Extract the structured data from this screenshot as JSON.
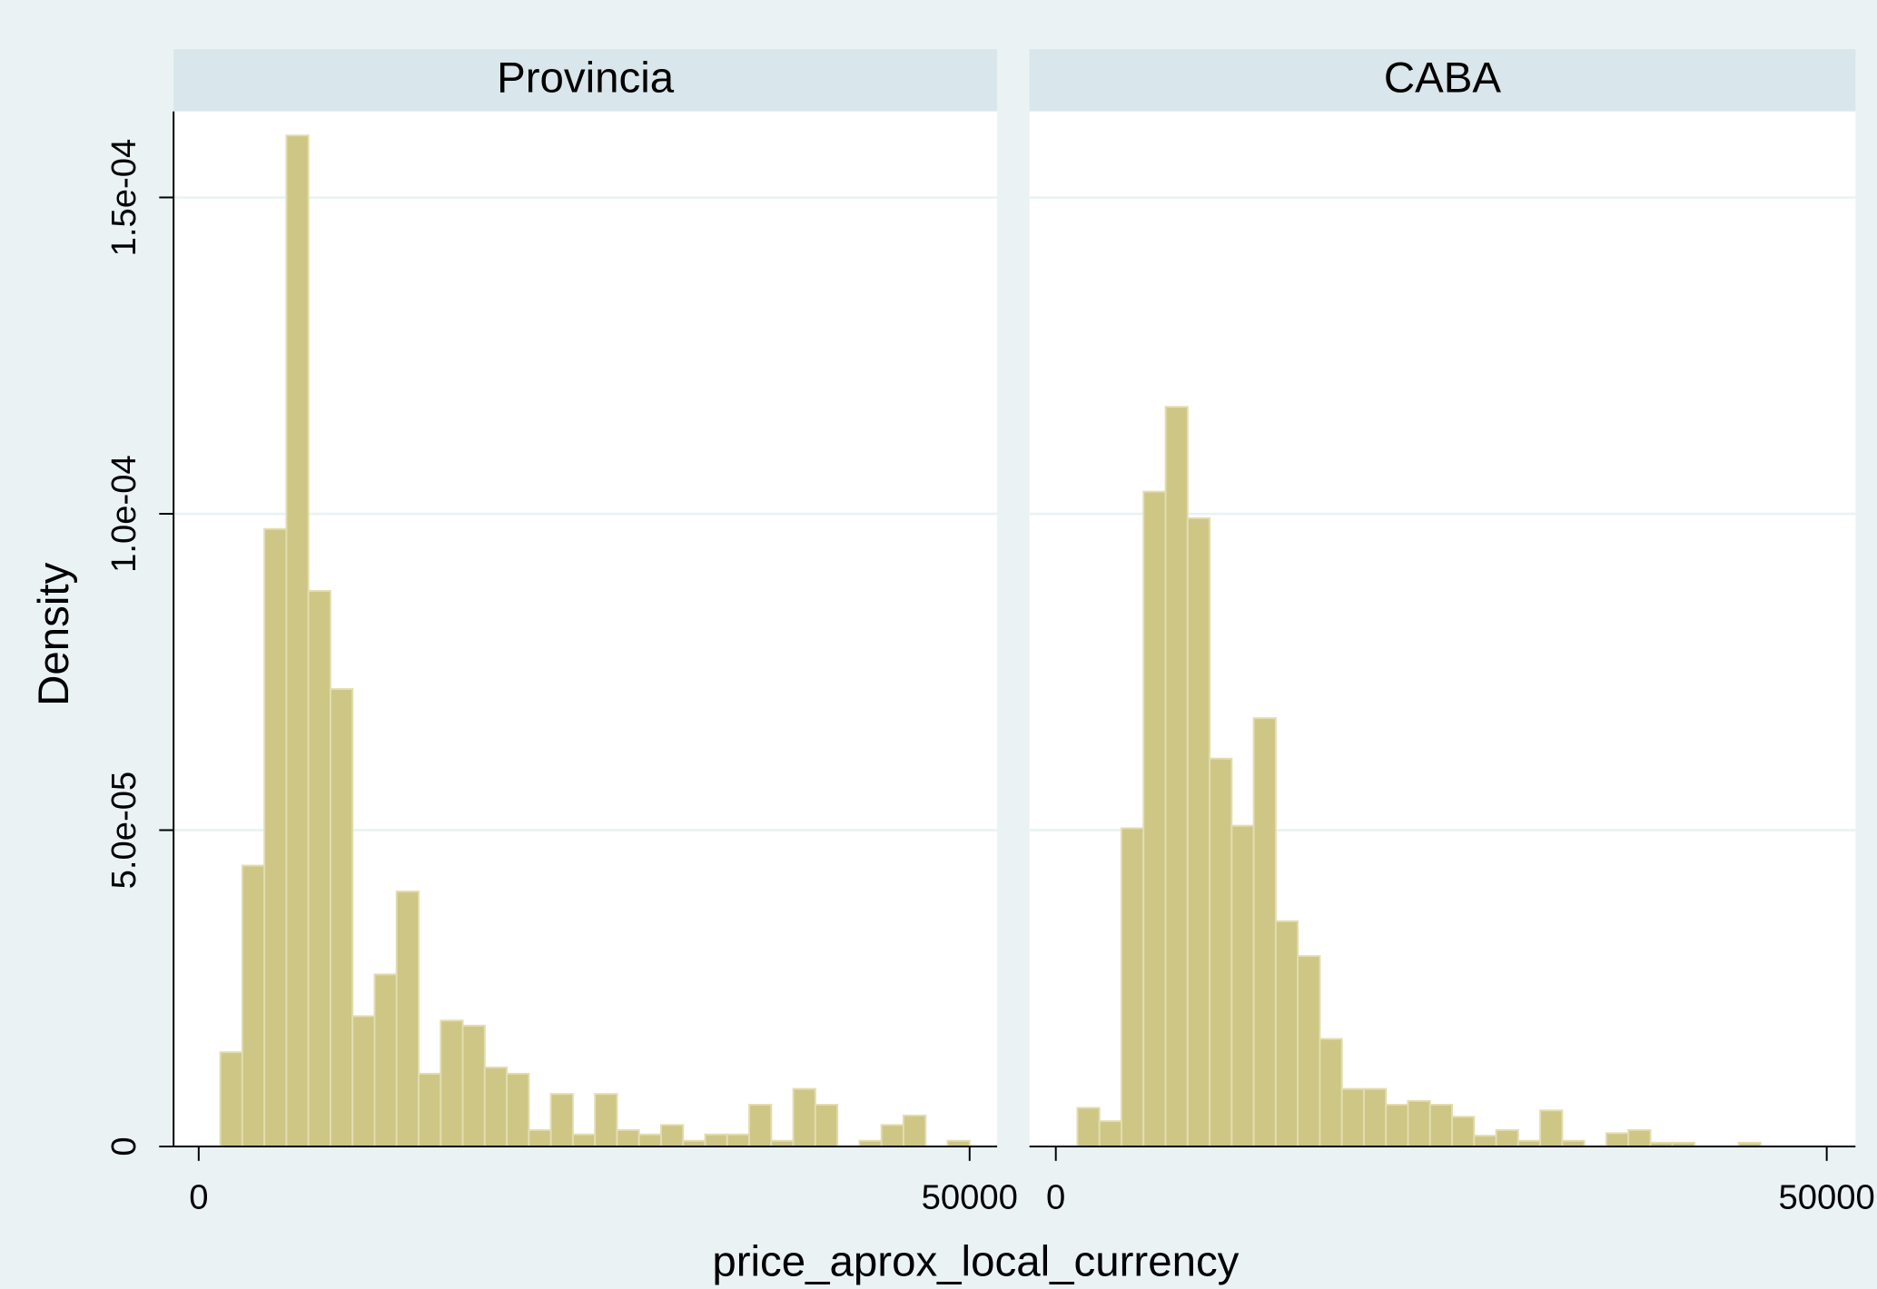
{
  "chart_data": [
    {
      "type": "histogram",
      "title": "Provincia",
      "xlabel": "price_aprox_local_currency",
      "ylabel": "Density",
      "color": "#cdc685",
      "grid": true,
      "bins": [
        1400,
        2829,
        4259,
        5688,
        7118,
        8547,
        9976,
        11406,
        12835,
        14265,
        15694,
        17124,
        18553,
        19982,
        21412,
        22841,
        24271,
        25700,
        27129,
        28559,
        29988,
        31418,
        32847,
        34276,
        35706,
        37135,
        38565,
        39994,
        41424,
        42853,
        44282,
        45712,
        47141,
        48571,
        50000
      ],
      "values": [
        1.49e-05,
        4.44e-05,
        9.76e-05,
        0.0001598,
        8.78e-05,
        7.23e-05,
        2.06e-05,
        2.72e-05,
        4.03e-05,
        1.15e-05,
        1.99e-05,
        1.91e-05,
        1.25e-05,
        1.15e-05,
        2.6e-06,
        8.3e-06,
        1.9e-06,
        8.3e-06,
        2.6e-06,
        1.9e-06,
        3.4e-06,
        9e-07,
        1.9e-06,
        1.9e-06,
        6.6e-06,
        9e-07,
        9.1e-06,
        6.6e-06,
        0,
        9e-07,
        3.4e-06,
        4.9e-06,
        0,
        9e-07
      ],
      "xlim": [
        -1630,
        51786
      ],
      "xticks": [
        0,
        50000
      ],
      "ylim": [
        0,
        0.0001636
      ],
      "yticks": [
        0,
        {
          "value": 5e-05,
          "label": "5.0e-05"
        },
        {
          "value": 0.0001,
          "label": "1.0e-04"
        },
        {
          "value": 0.00015,
          "label": "1.5e-04"
        }
      ]
    },
    {
      "type": "histogram",
      "title": "CABA",
      "color": "#cdc685",
      "grid": true,
      "bins": [
        1400,
        2829,
        4259,
        5688,
        7118,
        8547,
        9976,
        11406,
        12835,
        14265,
        15694,
        17124,
        18553,
        19982,
        21412,
        22841,
        24271,
        25700,
        27129,
        28559,
        29988,
        31418,
        32847,
        34276,
        35706,
        37135,
        38565,
        39994,
        41424,
        42853,
        44282,
        45712,
        47141,
        48571,
        50000
      ],
      "values": [
        6.1e-06,
        4e-06,
        5.03e-05,
        0.0001035,
        0.0001169,
        9.93e-05,
        6.13e-05,
        5.07e-05,
        6.77e-05,
        3.56e-05,
        3.01e-05,
        1.7e-05,
        9.1e-06,
        9.1e-06,
        6.6e-06,
        7.2e-06,
        6.6e-06,
        4.7e-06,
        1.7e-06,
        2.6e-06,
        9e-07,
        5.7e-06,
        9e-07,
        0,
        2.1e-06,
        2.6e-06,
        6e-07,
        6e-07,
        0,
        0,
        6e-07,
        0,
        0,
        0
      ],
      "xlim": [
        -1708,
        51863
      ],
      "xticks": [
        0,
        50000
      ],
      "ylim": [
        0,
        0.0001636
      ],
      "yticks": [
        0,
        5e-05,
        0.0001,
        0.00015
      ]
    }
  ]
}
